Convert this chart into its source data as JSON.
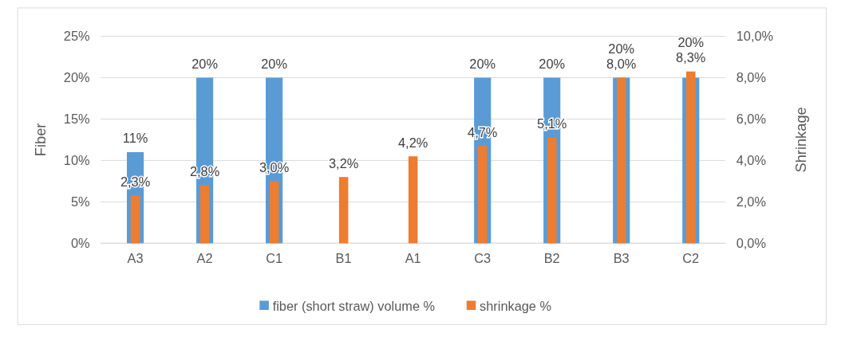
{
  "chart_data": {
    "type": "bar",
    "ylabel": "Fiber",
    "y2label": "Shrinkage",
    "categories": [
      "A3",
      "A2",
      "C1",
      "B1",
      "A1",
      "C3",
      "B2",
      "B3",
      "C2"
    ],
    "series": [
      {
        "name": "fiber (short straw) volume %",
        "color": "#5b9bd5",
        "values": [
          11,
          20,
          20,
          null,
          null,
          20,
          20,
          20,
          20
        ],
        "value_labels": [
          "11%",
          "20%",
          "20%",
          null,
          null,
          "20%",
          "20%",
          "20%",
          "20%"
        ]
      },
      {
        "name": "shrinkage %",
        "color": "#ed7d31",
        "axis": "y2",
        "values": [
          2.3,
          2.8,
          3.0,
          3.2,
          4.2,
          4.7,
          5.1,
          8.0,
          8.3
        ],
        "value_labels": [
          "2,3%",
          "2,8%",
          "3,0%",
          "3,2%",
          "4,2%",
          "4,7%",
          "5,1%",
          "8,0%",
          "8,3%"
        ]
      }
    ],
    "ylim": [
      0,
      25
    ],
    "yticks": [
      {
        "value": 0,
        "label": "0%"
      },
      {
        "value": 5,
        "label": "5%"
      },
      {
        "value": 10,
        "label": "10%"
      },
      {
        "value": 15,
        "label": "15%"
      },
      {
        "value": 20,
        "label": "20%"
      },
      {
        "value": 25,
        "label": "25%"
      }
    ],
    "y2lim": [
      0,
      10
    ],
    "y2ticks": [
      {
        "value": 0,
        "label": "0,0%"
      },
      {
        "value": 2,
        "label": "2,0%"
      },
      {
        "value": 4,
        "label": "4,0%"
      },
      {
        "value": 6,
        "label": "6,0%"
      },
      {
        "value": 8,
        "label": "8,0%"
      },
      {
        "value": 10,
        "label": "10,0%"
      }
    ],
    "grid": "y",
    "legend": "bottom"
  }
}
